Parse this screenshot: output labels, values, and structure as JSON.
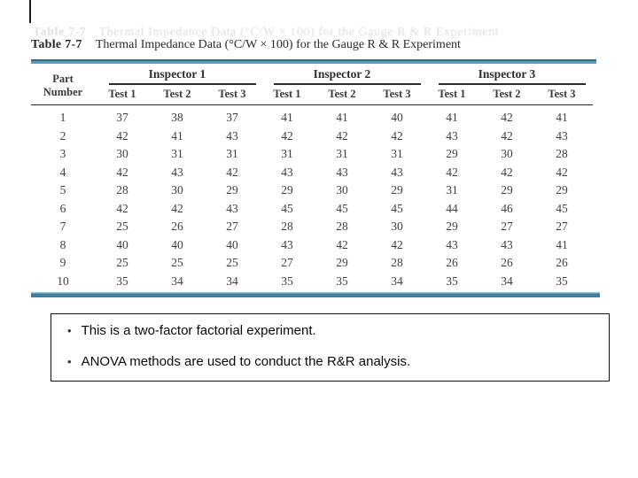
{
  "colors": {
    "teal_rule_dark": "#2e6d8c",
    "teal_rule_main": "#5e9cb5",
    "header_rule": "#222222",
    "table_text": "#3f3f3f",
    "notes_border": "#111111"
  },
  "table": {
    "title_label": "Table 7-7",
    "title_text": "Thermal Impedance Data (°C/W × 100) for the Gauge R & R Experiment",
    "header": {
      "part_line1": "Part",
      "part_line2": "Number",
      "inspectors": [
        "Inspector 1",
        "Inspector 2",
        "Inspector 3"
      ],
      "tests": [
        "Test 1",
        "Test 2",
        "Test 3"
      ]
    },
    "rows": [
      {
        "part": "1",
        "values": [
          "37",
          "38",
          "37",
          "41",
          "41",
          "40",
          "41",
          "42",
          "41"
        ]
      },
      {
        "part": "2",
        "values": [
          "42",
          "41",
          "43",
          "42",
          "42",
          "42",
          "43",
          "42",
          "43"
        ]
      },
      {
        "part": "3",
        "values": [
          "30",
          "31",
          "31",
          "31",
          "31",
          "31",
          "29",
          "30",
          "28"
        ]
      },
      {
        "part": "4",
        "values": [
          "42",
          "43",
          "42",
          "43",
          "43",
          "43",
          "42",
          "42",
          "42"
        ]
      },
      {
        "part": "5",
        "values": [
          "28",
          "30",
          "29",
          "29",
          "30",
          "29",
          "31",
          "29",
          "29"
        ]
      },
      {
        "part": "6",
        "values": [
          "42",
          "42",
          "43",
          "45",
          "45",
          "45",
          "44",
          "46",
          "45"
        ]
      },
      {
        "part": "7",
        "values": [
          "25",
          "26",
          "27",
          "28",
          "28",
          "30",
          "29",
          "27",
          "27"
        ]
      },
      {
        "part": "8",
        "values": [
          "40",
          "40",
          "40",
          "43",
          "42",
          "42",
          "43",
          "43",
          "41"
        ]
      },
      {
        "part": "9",
        "values": [
          "25",
          "25",
          "25",
          "27",
          "29",
          "28",
          "26",
          "26",
          "26"
        ]
      },
      {
        "part": "10",
        "values": [
          "35",
          "34",
          "34",
          "35",
          "35",
          "34",
          "35",
          "34",
          "35"
        ]
      }
    ]
  },
  "notes": {
    "bullet_char": "•",
    "bullets": [
      "This is a two-factor factorial experiment.",
      "ANOVA methods are used to conduct the R&R analysis."
    ]
  }
}
